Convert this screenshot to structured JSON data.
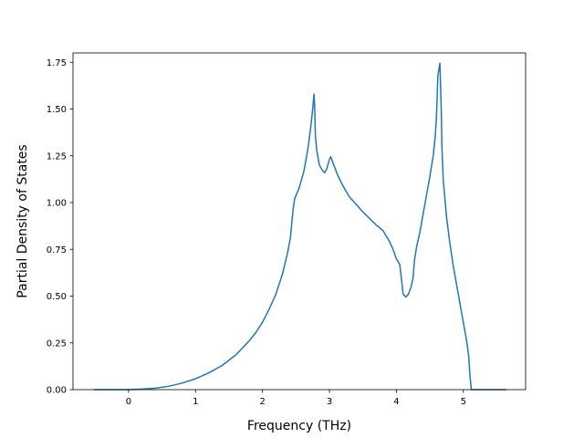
{
  "chart_data": {
    "type": "line",
    "title": "",
    "xlabel": "Frequency (THz)",
    "ylabel": "Partial Density of States",
    "xlim": [
      -0.83,
      5.93
    ],
    "ylim": [
      0.0,
      1.8
    ],
    "x_ticks": [
      0,
      1,
      2,
      3,
      4,
      5
    ],
    "x_tick_labels": [
      "0",
      "1",
      "2",
      "3",
      "4",
      "5"
    ],
    "y_ticks": [
      0.0,
      0.25,
      0.5,
      0.75,
      1.0,
      1.25,
      1.5,
      1.75
    ],
    "y_tick_labels": [
      "0.00",
      "0.25",
      "0.50",
      "0.75",
      "1.00",
      "1.25",
      "1.50",
      "1.75"
    ],
    "grid": false,
    "legend": "none",
    "series_color": "#1f77b4",
    "series": [
      {
        "points": [
          [
            -0.52,
            0.0
          ],
          [
            0.0,
            0.0
          ],
          [
            0.2,
            0.003
          ],
          [
            0.4,
            0.008
          ],
          [
            0.6,
            0.018
          ],
          [
            0.8,
            0.035
          ],
          [
            1.0,
            0.058
          ],
          [
            1.2,
            0.09
          ],
          [
            1.4,
            0.13
          ],
          [
            1.6,
            0.185
          ],
          [
            1.8,
            0.26
          ],
          [
            1.9,
            0.305
          ],
          [
            2.0,
            0.36
          ],
          [
            2.1,
            0.43
          ],
          [
            2.2,
            0.51
          ],
          [
            2.3,
            0.62
          ],
          [
            2.38,
            0.74
          ],
          [
            2.42,
            0.82
          ],
          [
            2.44,
            0.9
          ],
          [
            2.46,
            0.97
          ],
          [
            2.48,
            1.02
          ],
          [
            2.55,
            1.08
          ],
          [
            2.62,
            1.17
          ],
          [
            2.68,
            1.29
          ],
          [
            2.72,
            1.4
          ],
          [
            2.75,
            1.5
          ],
          [
            2.77,
            1.58
          ],
          [
            2.78,
            1.51
          ],
          [
            2.79,
            1.36
          ],
          [
            2.81,
            1.28
          ],
          [
            2.85,
            1.2
          ],
          [
            2.9,
            1.17
          ],
          [
            2.93,
            1.16
          ],
          [
            2.96,
            1.18
          ],
          [
            3.0,
            1.23
          ],
          [
            3.02,
            1.245
          ],
          [
            3.05,
            1.215
          ],
          [
            3.12,
            1.15
          ],
          [
            3.2,
            1.09
          ],
          [
            3.3,
            1.03
          ],
          [
            3.4,
            0.99
          ],
          [
            3.5,
            0.95
          ],
          [
            3.6,
            0.915
          ],
          [
            3.7,
            0.88
          ],
          [
            3.8,
            0.85
          ],
          [
            3.85,
            0.82
          ],
          [
            3.9,
            0.79
          ],
          [
            3.95,
            0.75
          ],
          [
            4.0,
            0.7
          ],
          [
            4.05,
            0.67
          ],
          [
            4.08,
            0.58
          ],
          [
            4.1,
            0.51
          ],
          [
            4.14,
            0.495
          ],
          [
            4.18,
            0.51
          ],
          [
            4.22,
            0.55
          ],
          [
            4.25,
            0.6
          ],
          [
            4.27,
            0.69
          ],
          [
            4.3,
            0.76
          ],
          [
            4.35,
            0.84
          ],
          [
            4.4,
            0.94
          ],
          [
            4.45,
            1.04
          ],
          [
            4.5,
            1.14
          ],
          [
            4.55,
            1.25
          ],
          [
            4.58,
            1.35
          ],
          [
            4.6,
            1.47
          ],
          [
            4.62,
            1.68
          ],
          [
            4.65,
            1.745
          ],
          [
            4.67,
            1.5
          ],
          [
            4.68,
            1.3
          ],
          [
            4.7,
            1.12
          ],
          [
            4.75,
            0.92
          ],
          [
            4.8,
            0.78
          ],
          [
            4.85,
            0.66
          ],
          [
            4.9,
            0.56
          ],
          [
            4.95,
            0.46
          ],
          [
            5.0,
            0.36
          ],
          [
            5.05,
            0.26
          ],
          [
            5.08,
            0.18
          ],
          [
            5.1,
            0.07
          ],
          [
            5.12,
            0.0
          ],
          [
            5.3,
            0.0
          ],
          [
            5.64,
            0.0
          ]
        ]
      }
    ]
  }
}
